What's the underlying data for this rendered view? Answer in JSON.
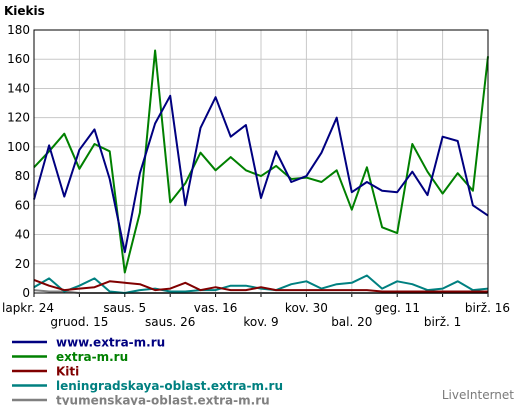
{
  "chart_data": {
    "type": "line",
    "title": "Kiekis",
    "ylim": [
      0,
      180
    ],
    "yticks": [
      0,
      20,
      40,
      60,
      80,
      100,
      120,
      140,
      160,
      180
    ],
    "grid": true,
    "legend_placement": "bottom-left",
    "x_tick_labels": [
      {
        "label": "lapkr. 24",
        "index": 0
      },
      {
        "label": "gruod. 15",
        "index": 3
      },
      {
        "label": "saus. 5",
        "index": 6
      },
      {
        "label": "saus. 26",
        "index": 9
      },
      {
        "label": "vas. 16",
        "index": 12
      },
      {
        "label": "kov. 9",
        "index": 15
      },
      {
        "label": "kov. 30",
        "index": 18
      },
      {
        "label": "bal. 20",
        "index": 21
      },
      {
        "label": "geg. 11",
        "index": 24
      },
      {
        "label": "birž. 1",
        "index": 27
      },
      {
        "label": "birž. 16",
        "index": 30
      }
    ],
    "series": [
      {
        "name": "www.extra-m.ru",
        "color": "#000080",
        "values": [
          64,
          101,
          66,
          98,
          112,
          78,
          28,
          82,
          116,
          135,
          60,
          113,
          134,
          107,
          115,
          65,
          97,
          76,
          80,
          96,
          120,
          69,
          76,
          70,
          69,
          83,
          67,
          107,
          104,
          60,
          53
        ]
      },
      {
        "name": "extra-m.ru",
        "color": "#008000",
        "values": [
          86,
          97,
          109,
          85,
          102,
          97,
          14,
          55,
          166,
          62,
          75,
          96,
          84,
          93,
          84,
          80,
          87,
          78,
          79,
          76,
          84,
          57,
          86,
          45,
          41,
          102,
          83,
          68,
          82,
          70,
          162
        ]
      },
      {
        "name": "Kiti",
        "color": "#800000",
        "values": [
          9,
          5,
          2,
          3,
          4,
          8,
          7,
          6,
          2,
          3,
          7,
          2,
          4,
          2,
          2,
          4,
          2,
          2,
          2,
          2,
          2,
          2,
          2,
          1,
          1,
          1,
          1,
          1,
          1,
          1,
          1
        ]
      },
      {
        "name": "leningradskaya-oblast.extra-m.ru",
        "color": "#008080",
        "values": [
          4,
          10,
          1,
          5,
          10,
          1,
          0,
          2,
          3,
          1,
          1,
          2,
          2,
          5,
          5,
          3,
          2,
          6,
          8,
          3,
          6,
          7,
          12,
          3,
          8,
          6,
          2,
          3,
          8,
          2,
          3
        ]
      },
      {
        "name": "tyumenskaya-oblast.extra-m.ru",
        "color": "#808080",
        "values": [
          2,
          1,
          1,
          0,
          0,
          0,
          0,
          0,
          0,
          0,
          0,
          0,
          0,
          0,
          0,
          0,
          0,
          0,
          0,
          0,
          0,
          0,
          0,
          0,
          0,
          0,
          0,
          0,
          0,
          0,
          0
        ]
      }
    ]
  },
  "brand": "LiveInternet"
}
